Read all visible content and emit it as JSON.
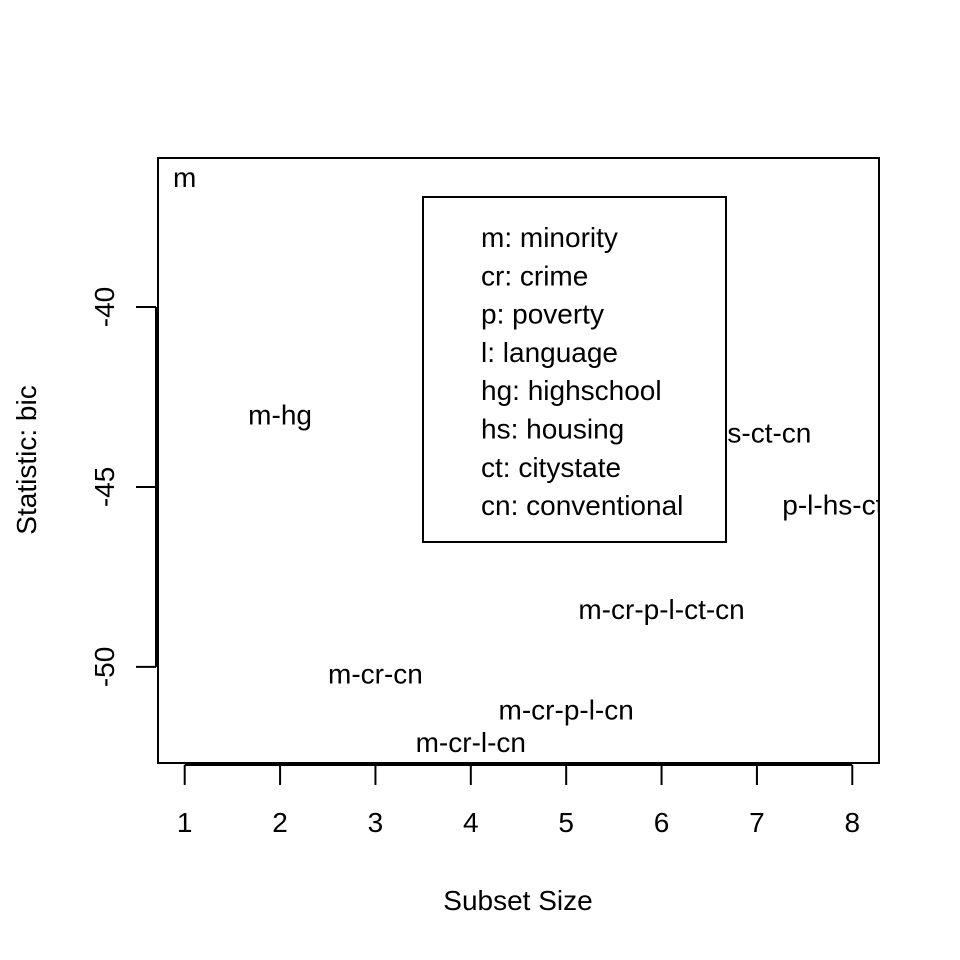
{
  "chart_data": {
    "type": "scatter",
    "marker": "text-label",
    "title": "",
    "xlabel": "Subset Size",
    "ylabel": "Statistic: bic",
    "xlim": [
      0.72,
      8.28
    ],
    "ylim": [
      -52.67,
      -35.86
    ],
    "x_ticks": [
      1,
      2,
      3,
      4,
      5,
      6,
      7,
      8
    ],
    "x_tick_labels": [
      "1",
      "2",
      "3",
      "4",
      "5",
      "6",
      "7",
      "8"
    ],
    "y_ticks": [
      -40,
      -45,
      -50
    ],
    "y_tick_labels": [
      "-40",
      "-45",
      "-50"
    ],
    "grid": false,
    "points": [
      {
        "x": 1,
        "y": -36.4,
        "label": "m"
      },
      {
        "x": 2,
        "y": -43.0,
        "label": "m-hg"
      },
      {
        "x": 3,
        "y": -50.2,
        "label": "m-cr-cn"
      },
      {
        "x": 4,
        "y": -52.1,
        "label": "m-cr-l-cn"
      },
      {
        "x": 5,
        "y": -51.2,
        "label": "m-cr-p-l-cn"
      },
      {
        "x": 6,
        "y": -48.4,
        "label": "m-cr-p-l-ct-cn"
      },
      {
        "x": 7,
        "y": -43.5,
        "label": "-hs-ct-cn"
      },
      {
        "x": 8,
        "y": -45.5,
        "label": "p-l-hs-ct-cn"
      }
    ],
    "legend": {
      "placement": "top-center",
      "entries": [
        "m: minority",
        "cr: crime",
        "p: poverty",
        "l: language",
        "hg: highschool",
        "hs: housing",
        "ct: citystate",
        "cn: conventional"
      ]
    }
  }
}
